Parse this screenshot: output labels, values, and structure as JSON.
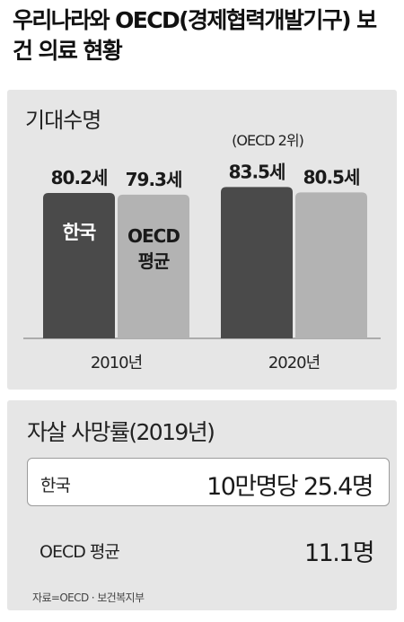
{
  "title": "우리나라와 OECD(경제협력개발기구) 보건 의료 현황",
  "chart_data": {
    "type": "bar",
    "title": "기대수명",
    "categories": [
      "2010년",
      "2020년"
    ],
    "ylim": [
      0,
      90
    ],
    "series": [
      {
        "name": "한국",
        "values": [
          80.2,
          83.5
        ],
        "color": "#4a4a4a"
      },
      {
        "name": "OECD 평균",
        "values": [
          79.3,
          80.5
        ],
        "color": "#b3b3b3"
      }
    ],
    "data_labels": [
      [
        "80.2세",
        "83.5세"
      ],
      [
        "79.3세",
        "80.5세"
      ]
    ],
    "in_bar_labels": [
      "한국",
      "OECD\n평균"
    ],
    "annotation": "(OECD 2위)"
  },
  "suicide": {
    "heading": "자살 사망률(2019년)",
    "rows": [
      {
        "label": "한국",
        "value": "10만명당 25.4명"
      },
      {
        "label": "OECD 평균",
        "value": "11.1명"
      }
    ]
  },
  "source": "자료=OECD · 보건복지부"
}
